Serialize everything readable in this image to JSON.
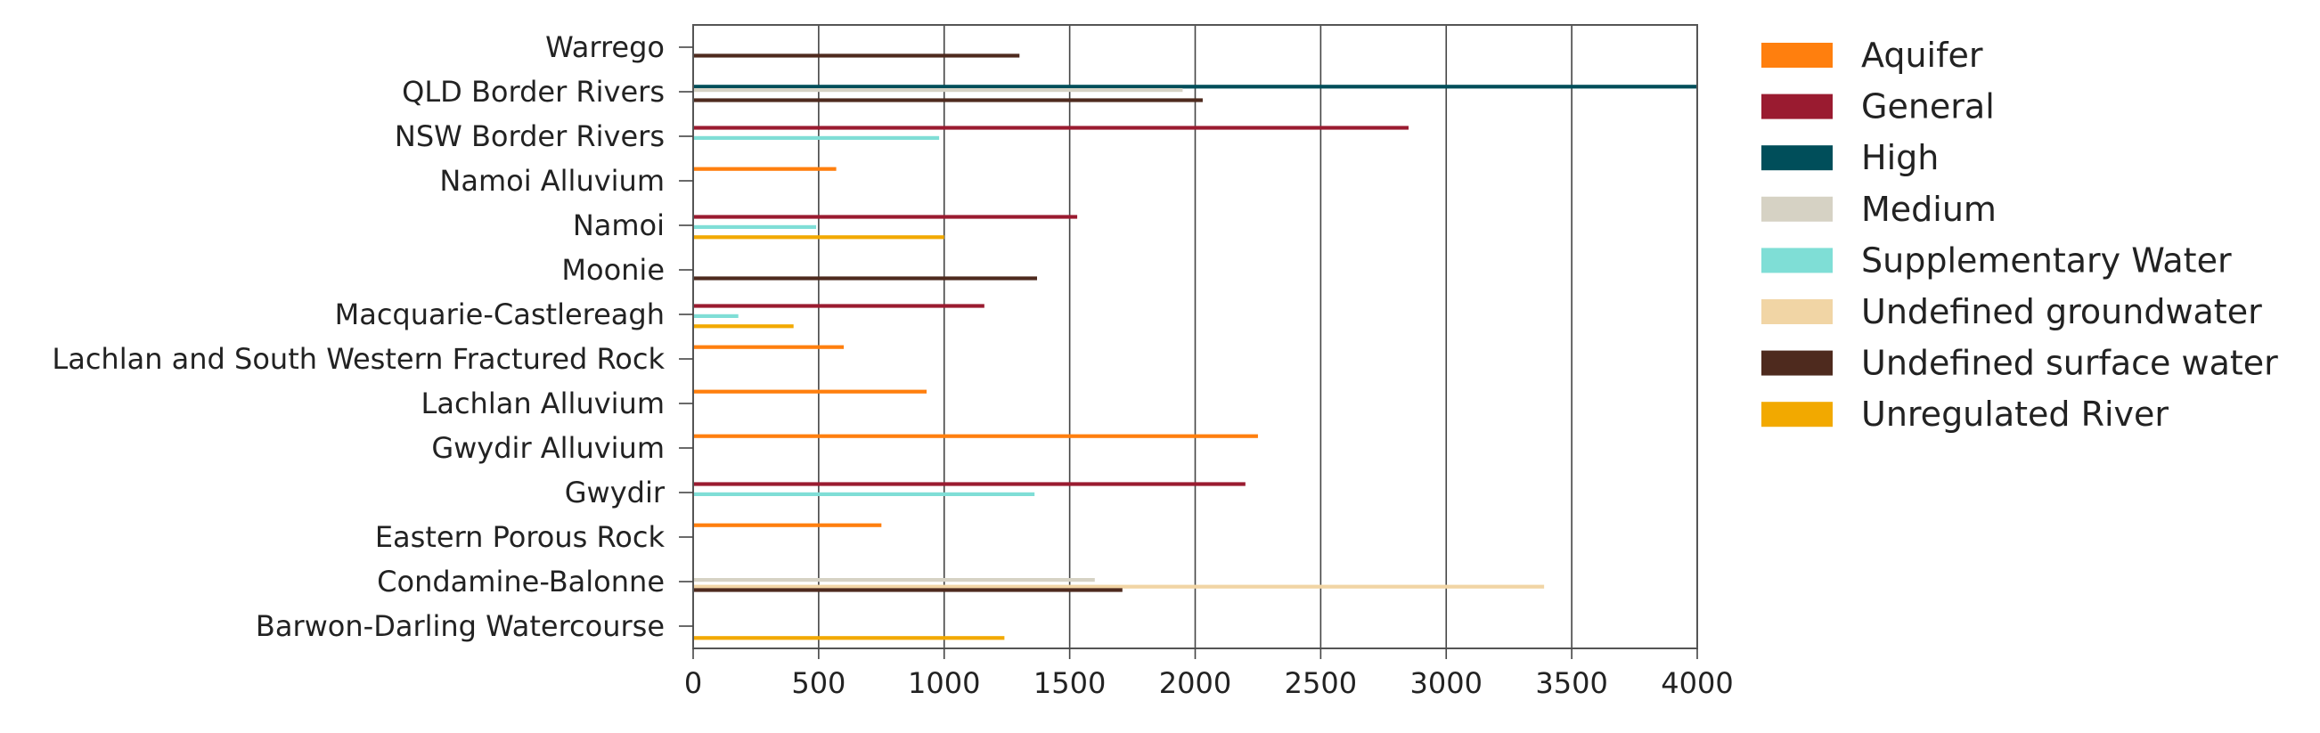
{
  "chart_data": {
    "type": "bar",
    "orientation": "horizontal",
    "grid": true,
    "legend_position": "right",
    "xlim": [
      0,
      4000
    ],
    "xticks": [
      "0",
      "500",
      "1000",
      "1500",
      "2000",
      "2500",
      "3000",
      "3500",
      "4000"
    ],
    "categories": [
      "Warrego",
      "QLD Border Rivers",
      "NSW Border Rivers",
      "Namoi Alluvium",
      "Namoi",
      "Moonie",
      "Macquarie-Castlereagh",
      "Lachlan and South Western Fractured Rock",
      "Lachlan Alluvium",
      "Gwydir Alluvium",
      "Gwydir",
      "Eastern Porous Rock",
      "Condamine-Balonne",
      "Barwon-Darling Watercourse"
    ],
    "series": [
      {
        "name": "Aquifer",
        "color": "#ff7f0e",
        "values": [
          null,
          null,
          null,
          570,
          null,
          null,
          null,
          600,
          930,
          2250,
          null,
          750,
          null,
          null
        ]
      },
      {
        "name": "General",
        "color": "#9a1b30",
        "values": [
          null,
          null,
          2850,
          null,
          1530,
          null,
          1160,
          null,
          null,
          null,
          2200,
          null,
          null,
          null
        ]
      },
      {
        "name": "High",
        "color": "#004e5a",
        "values": [
          null,
          4000,
          null,
          null,
          null,
          null,
          null,
          null,
          null,
          null,
          null,
          null,
          null,
          null
        ]
      },
      {
        "name": "Medium",
        "color": "#d6d2c4",
        "values": [
          null,
          1950,
          null,
          null,
          null,
          null,
          null,
          null,
          null,
          null,
          null,
          null,
          1600,
          null
        ]
      },
      {
        "name": "Supplementary Water",
        "color": "#7fded6",
        "values": [
          null,
          null,
          980,
          null,
          490,
          null,
          180,
          null,
          null,
          null,
          1360,
          null,
          null,
          null
        ]
      },
      {
        "name": "Undefined groundwater",
        "color": "#f1d5a5",
        "values": [
          null,
          null,
          null,
          null,
          null,
          null,
          null,
          null,
          null,
          null,
          null,
          null,
          3390,
          null
        ]
      },
      {
        "name": "Undefined surface water",
        "color": "#4e2a1e",
        "values": [
          1300,
          2030,
          null,
          null,
          null,
          1370,
          null,
          null,
          null,
          null,
          null,
          null,
          1710,
          null
        ]
      },
      {
        "name": "Unregulated River",
        "color": "#f2a900",
        "values": [
          null,
          null,
          null,
          null,
          1000,
          null,
          400,
          null,
          null,
          null,
          null,
          null,
          null,
          1240
        ]
      }
    ]
  }
}
